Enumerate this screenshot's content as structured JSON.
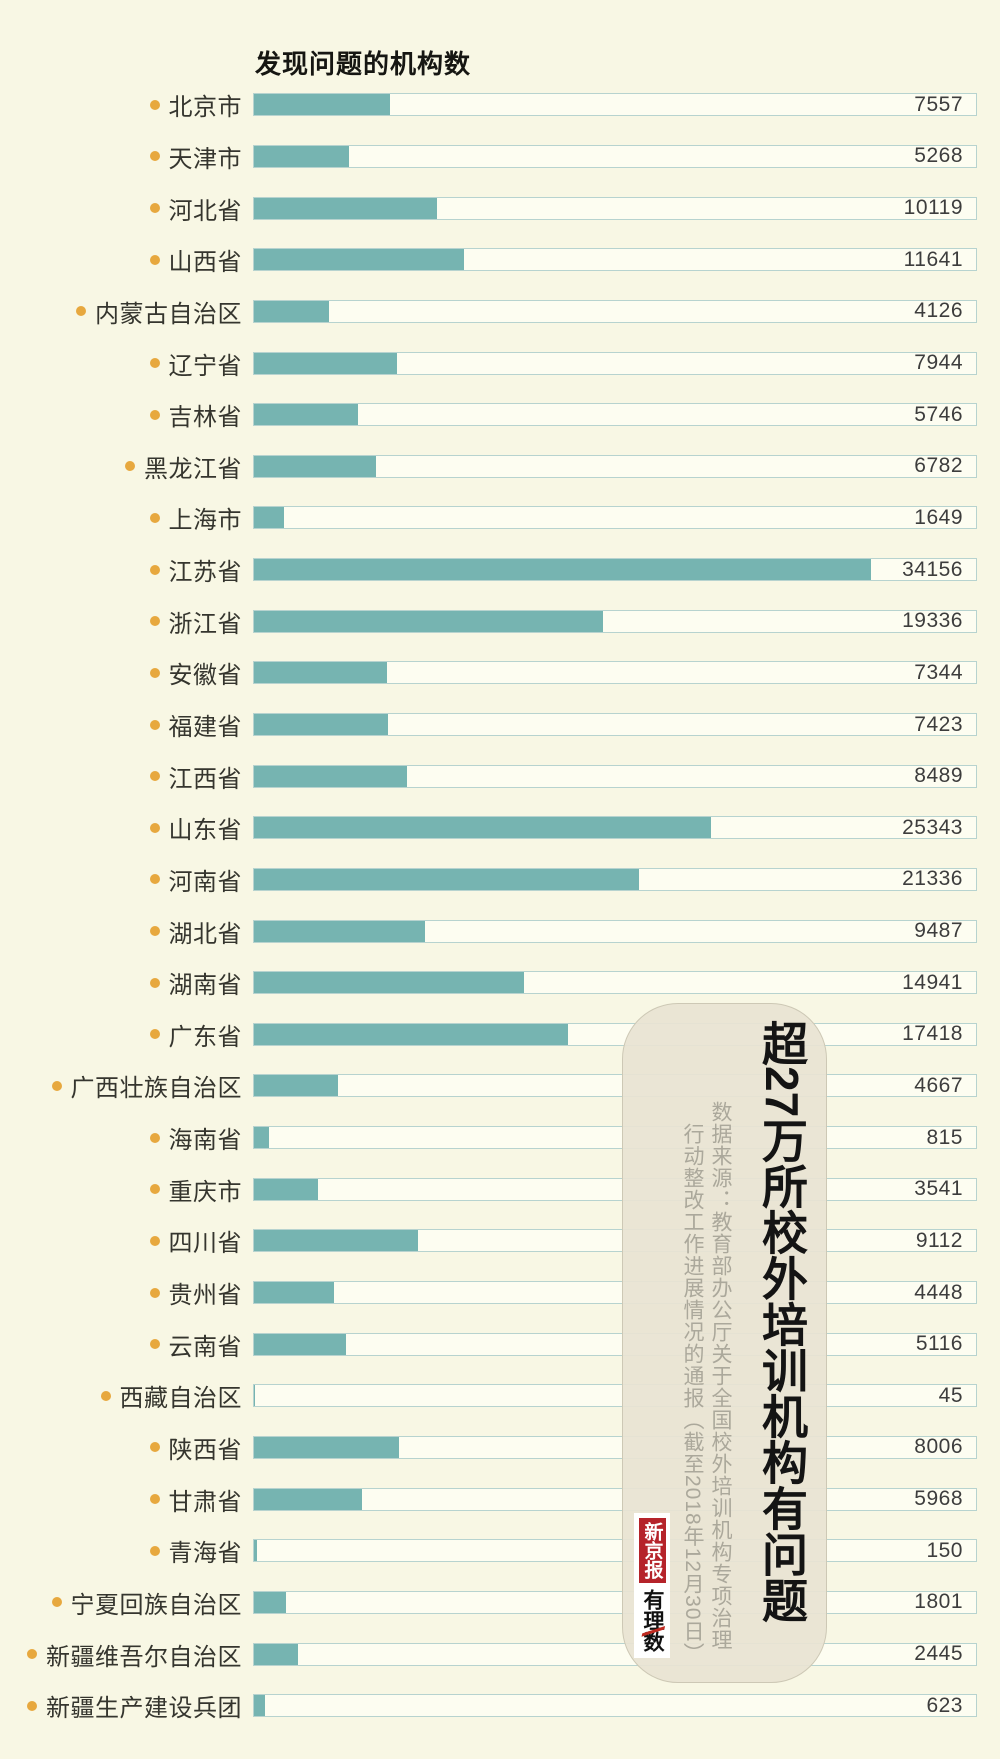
{
  "page_title": "发现问题的机构数",
  "chart_data": {
    "type": "bar",
    "orientation": "horizontal",
    "title": "发现问题的机构数",
    "axis_max": 40000,
    "grid": false,
    "legend": "none",
    "categories": [
      "北京市",
      "天津市",
      "河北省",
      "山西省",
      "内蒙古自治区",
      "辽宁省",
      "吉林省",
      "黑龙江省",
      "上海市",
      "江苏省",
      "浙江省",
      "安徽省",
      "福建省",
      "江西省",
      "山东省",
      "河南省",
      "湖北省",
      "湖南省",
      "广东省",
      "广西壮族自治区",
      "海南省",
      "重庆市",
      "四川省",
      "贵州省",
      "云南省",
      "西藏自治区",
      "陕西省",
      "甘肃省",
      "青海省",
      "宁夏回族自治区",
      "新疆维吾尔自治区",
      "新疆生产建设兵团"
    ],
    "values": [
      7557,
      5268,
      10119,
      11641,
      4126,
      7944,
      5746,
      6782,
      1649,
      34156,
      19336,
      7344,
      7423,
      8489,
      25343,
      21336,
      9487,
      14941,
      17418,
      4667,
      815,
      3541,
      9112,
      4448,
      5116,
      45,
      8006,
      5968,
      150,
      1801,
      2445,
      623
    ],
    "bar_color": "#76b4b1",
    "track_color": "#fdfdf1",
    "track_border_color": "#b7d3cf",
    "dot_color": "#e7a83e",
    "background_color": "#f8f7e4"
  },
  "overlay": {
    "headline": "超27万所校外培训机构有问题",
    "source_line1": "数据来源：教育部办公厅关于全国校外培训机构专项治理",
    "source_line2": "行动整改工作进展情况的通报（截至2018年12月30日）",
    "logo1": "新京报",
    "logo2": "有理数",
    "logo1_color": "#b5232a",
    "panel_color": "#e8e3d3"
  }
}
